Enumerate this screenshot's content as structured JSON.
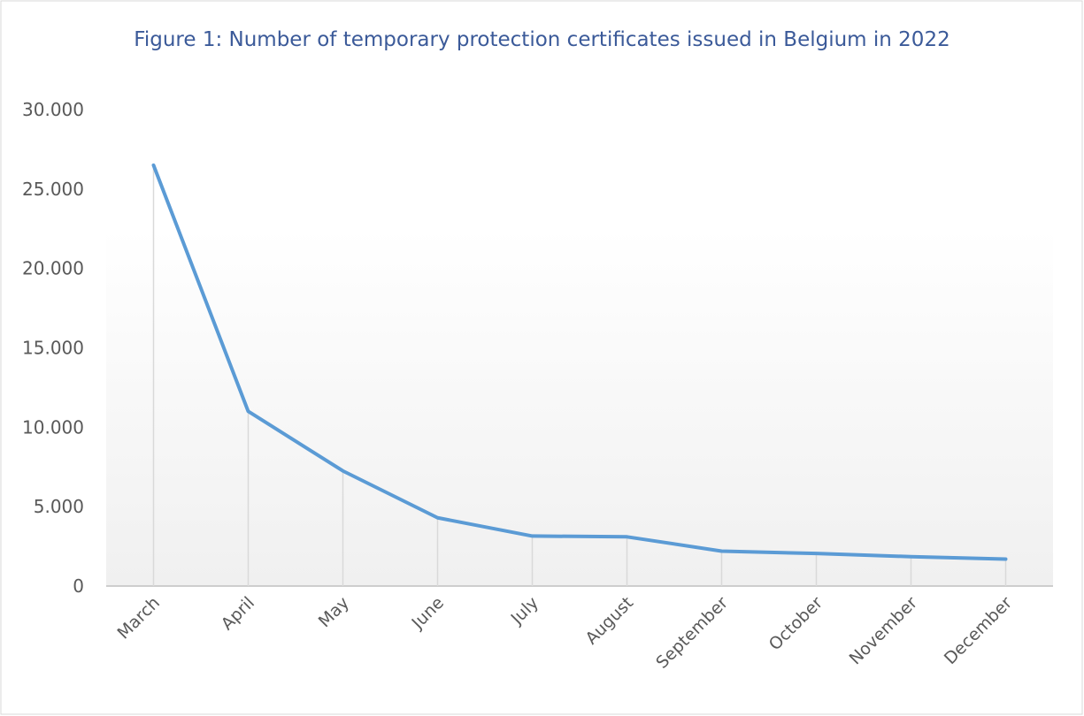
{
  "chart_data": {
    "type": "line",
    "title": "Figure 1: Number of temporary protection certificates issued in Belgium in 2022",
    "categories": [
      "March",
      "April",
      "May",
      "June",
      "July",
      "August",
      "September",
      "October",
      "November",
      "December"
    ],
    "series": [
      {
        "name": "Temporary protection certificates",
        "color": "#5b9bd5",
        "values": [
          26500,
          11000,
          7250,
          4300,
          3150,
          3100,
          2200,
          2050,
          1850,
          1700
        ]
      }
    ],
    "ylim": [
      0,
      30000
    ],
    "yticks": [
      0,
      {
        "value": 5000,
        "label": "5.000"
      },
      {
        "value": 10000,
        "label": "10.000"
      },
      {
        "value": 15000,
        "label": "15.000"
      },
      {
        "value": 20000,
        "label": "20.000"
      },
      {
        "value": 25000,
        "label": "25.000"
      },
      {
        "value": 30000,
        "label": "30.000"
      }
    ],
    "drop_lines": true
  }
}
